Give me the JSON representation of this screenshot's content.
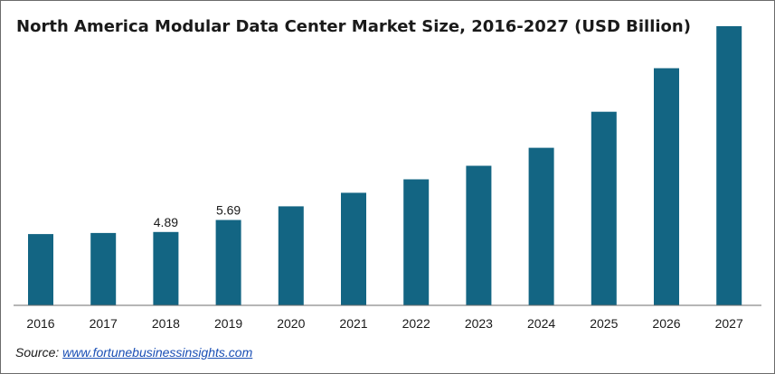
{
  "chart_data": {
    "type": "bar",
    "title": "North America Modular Data Center Market Size, 2016-2027 (USD Billion)",
    "xlabel": "",
    "ylabel": "",
    "categories": [
      "2016",
      "2017",
      "2018",
      "2019",
      "2020",
      "2021",
      "2022",
      "2023",
      "2024",
      "2025",
      "2026",
      "2027"
    ],
    "values": [
      4.75,
      4.82,
      4.89,
      5.69,
      6.6,
      7.5,
      8.4,
      9.3,
      10.5,
      12.9,
      15.8,
      18.6
    ],
    "data_labels": [
      "",
      "",
      "4.89",
      "5.69",
      "",
      "",
      "",
      "",
      "",
      "",
      "",
      ""
    ],
    "ylim": [
      0,
      18.6
    ],
    "bar_color": "#136583",
    "grid": false,
    "legend": "none"
  },
  "source": {
    "label": "Source:",
    "link_text": "www.fortunebusinessinsights.com"
  }
}
